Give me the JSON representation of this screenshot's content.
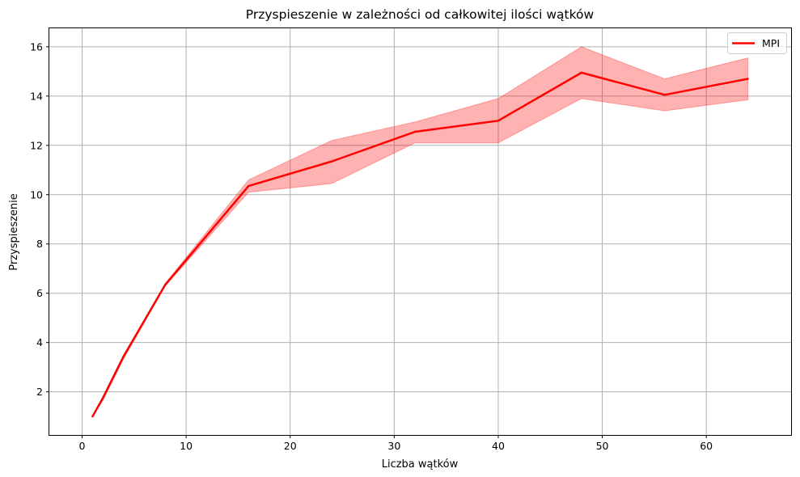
{
  "chart_data": {
    "type": "line",
    "title": "Przyspieszenie w zależności od całkowitej ilości wątków",
    "xlabel": "Liczba wątków",
    "ylabel": "Przyspieszenie",
    "xlim": [
      -3.15,
      68.15
    ],
    "ylim": [
      0.25,
      16.75
    ],
    "xticks": [
      0,
      10,
      20,
      30,
      40,
      50,
      60
    ],
    "yticks": [
      2,
      4,
      6,
      8,
      10,
      12,
      14,
      16
    ],
    "grid": true,
    "legend_position": "top-right",
    "series": [
      {
        "name": "MPI",
        "color": "#ff0000",
        "x": [
          1,
          2,
          4,
          8,
          16,
          24,
          32,
          40,
          48,
          56,
          64
        ],
        "y": [
          1.0,
          1.75,
          3.45,
          6.35,
          10.35,
          11.35,
          12.55,
          13.0,
          14.95,
          14.05,
          14.7
        ],
        "lower": [
          1.0,
          1.65,
          3.35,
          6.3,
          10.1,
          10.45,
          12.1,
          12.1,
          13.9,
          13.4,
          13.85
        ],
        "upper": [
          1.0,
          1.8,
          3.5,
          6.4,
          10.6,
          12.2,
          12.95,
          13.9,
          16.0,
          14.7,
          15.55
        ]
      }
    ],
    "band_color": "#ff0000"
  }
}
